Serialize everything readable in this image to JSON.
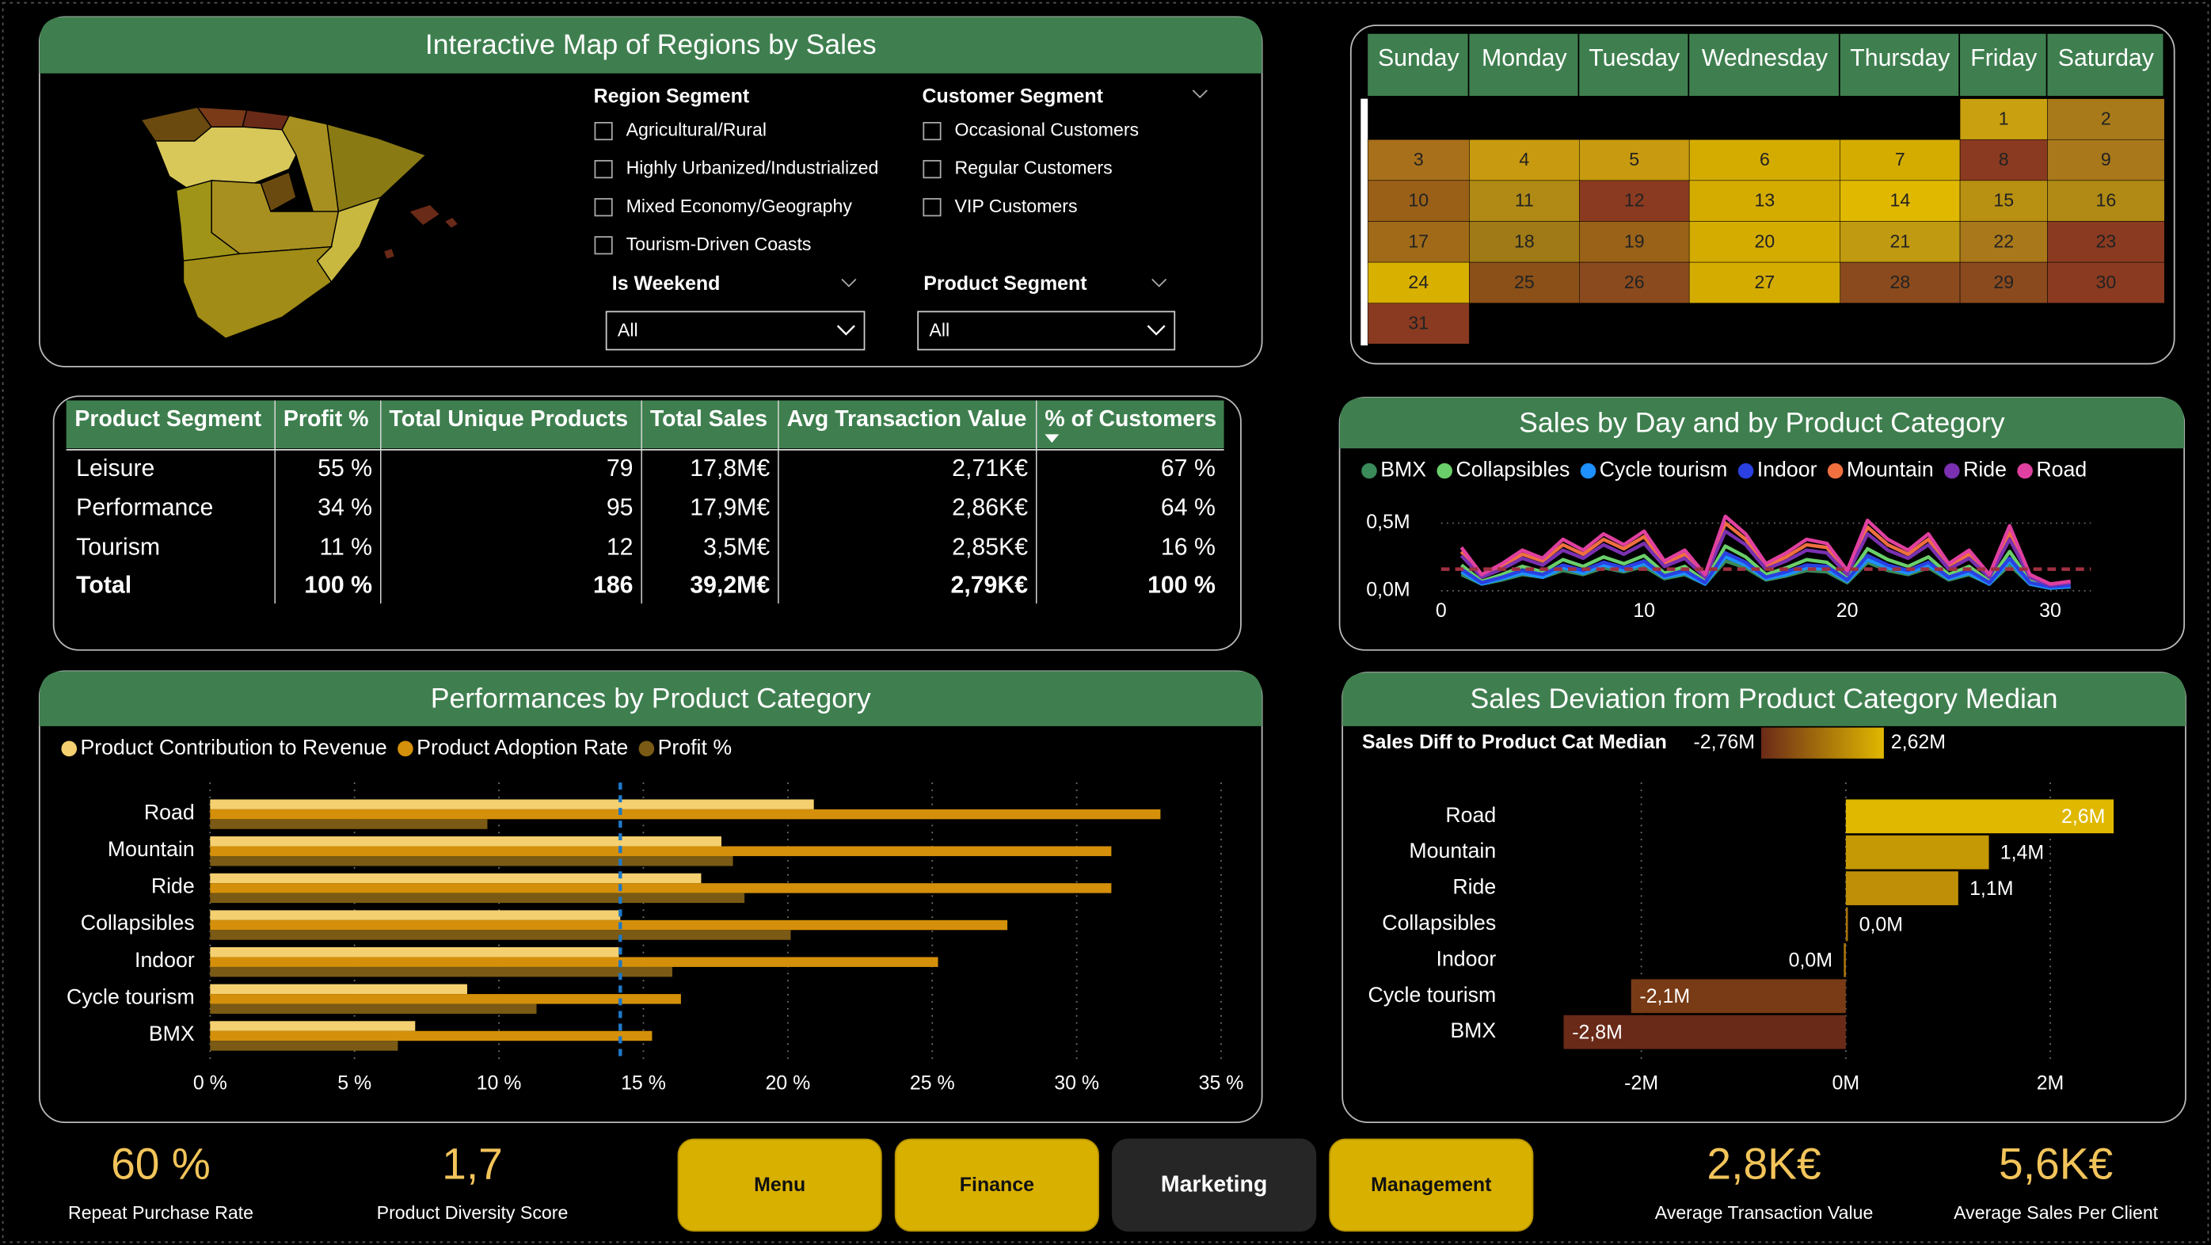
{
  "map_panel": {
    "title": "Interactive Map of Regions by Sales",
    "region_segment": {
      "label": "Region Segment",
      "options": [
        "Agricultural/Rural",
        "Highly Urbanized/Industrialized",
        "Mixed Economy/Geography",
        "Tourism-Driven Coasts"
      ]
    },
    "customer_segment": {
      "label": "Customer Segment",
      "options": [
        "Occasional Customers",
        "Regular Customers",
        "VIP Customers"
      ]
    },
    "is_weekend": {
      "label": "Is Weekend",
      "selected": "All"
    },
    "product_segment": {
      "label": "Product Segment",
      "selected": "All"
    }
  },
  "calendar": {
    "weekdays": [
      "Sunday",
      "Monday",
      "Tuesday",
      "Wednesday",
      "Thursday",
      "Friday",
      "Saturday"
    ],
    "days": [
      1,
      2,
      3,
      4,
      5,
      6,
      7,
      8,
      9,
      10,
      11,
      12,
      13,
      14,
      15,
      16,
      17,
      18,
      19,
      20,
      21,
      22,
      23,
      24,
      25,
      26,
      27,
      28,
      29,
      30,
      31
    ],
    "colors": [
      "#c9a010",
      "#a87a1a",
      "#a8701a",
      "#c89a10",
      "#c89a10",
      "#d4ac00",
      "#d4ac00",
      "#8a3a20",
      "#a8781a",
      "#9a6018",
      "#b08a14",
      "#8a3a20",
      "#d4ac00",
      "#e0b800",
      "#b89012",
      "#b08a14",
      "#a06a18",
      "#a07a16",
      "#9a6218",
      "#d4ac00",
      "#c09a10",
      "#a8781a",
      "#8a3a20",
      "#d8b000",
      "#8a5018",
      "#8a4a1e",
      "#d4ac00",
      "#8a4a1e",
      "#8a4a1e",
      "#8a3a20",
      "#8a3a20"
    ]
  },
  "table": {
    "columns": [
      "Product Segment",
      "Profit %",
      "Total Unique Products",
      "Total Sales",
      "Avg Transaction Value",
      "% of Customers"
    ],
    "rows": [
      [
        "Leisure",
        "55 %",
        "79",
        "17,8M€",
        "2,71K€",
        "67 %"
      ],
      [
        "Performance",
        "34 %",
        "95",
        "17,9M€",
        "2,86K€",
        "64 %"
      ],
      [
        "Tourism",
        "11 %",
        "12",
        "3,5M€",
        "2,85K€",
        "16 %"
      ],
      [
        "Total",
        "100 %",
        "186",
        "39,2M€",
        "2,79K€",
        "100 %"
      ]
    ]
  },
  "chart_data": [
    {
      "type": "line",
      "title": "Sales by Day and by Product Category",
      "x": [
        1,
        2,
        3,
        4,
        5,
        6,
        7,
        8,
        9,
        10,
        11,
        12,
        13,
        14,
        15,
        16,
        17,
        18,
        19,
        20,
        21,
        22,
        23,
        24,
        25,
        26,
        27,
        28,
        29,
        30,
        31
      ],
      "xlim": [
        0,
        32
      ],
      "xticks": [
        0,
        10,
        20,
        30
      ],
      "ylim": [
        0,
        0.6
      ],
      "yticks": [
        {
          "value": 0,
          "label": "0,0M"
        },
        {
          "value": 0.5,
          "label": "0,5M"
        }
      ],
      "grid": true,
      "reference_line": {
        "value": 0.16,
        "color": "#a03040"
      },
      "series": [
        {
          "name": "BMX",
          "color": "#3a8a5a",
          "values": [
            0.12,
            0.05,
            0.08,
            0.12,
            0.1,
            0.15,
            0.12,
            0.17,
            0.14,
            0.18,
            0.09,
            0.12,
            0.05,
            0.22,
            0.17,
            0.08,
            0.11,
            0.15,
            0.14,
            0.06,
            0.21,
            0.15,
            0.12,
            0.17,
            0.08,
            0.12,
            0.05,
            0.19,
            0.05,
            0.02,
            0.03
          ]
        },
        {
          "name": "Collapsibles",
          "color": "#6acf6a",
          "values": [
            0.19,
            0.07,
            0.12,
            0.18,
            0.14,
            0.23,
            0.18,
            0.25,
            0.2,
            0.26,
            0.13,
            0.18,
            0.07,
            0.33,
            0.25,
            0.12,
            0.17,
            0.23,
            0.21,
            0.09,
            0.31,
            0.23,
            0.18,
            0.25,
            0.12,
            0.18,
            0.07,
            0.29,
            0.07,
            0.03,
            0.04
          ]
        },
        {
          "name": "Cycle tourism",
          "color": "#1e90ff",
          "values": [
            0.14,
            0.05,
            0.09,
            0.13,
            0.1,
            0.17,
            0.13,
            0.19,
            0.15,
            0.2,
            0.1,
            0.13,
            0.05,
            0.25,
            0.19,
            0.09,
            0.12,
            0.17,
            0.16,
            0.07,
            0.23,
            0.17,
            0.13,
            0.19,
            0.09,
            0.13,
            0.05,
            0.22,
            0.05,
            0.02,
            0.03
          ]
        },
        {
          "name": "Indoor",
          "color": "#2a40e0",
          "values": [
            0.16,
            0.06,
            0.1,
            0.15,
            0.12,
            0.19,
            0.15,
            0.21,
            0.17,
            0.22,
            0.11,
            0.15,
            0.06,
            0.28,
            0.21,
            0.1,
            0.14,
            0.19,
            0.18,
            0.08,
            0.26,
            0.19,
            0.15,
            0.21,
            0.1,
            0.15,
            0.06,
            0.24,
            0.06,
            0.03,
            0.04
          ]
        },
        {
          "name": "Mountain",
          "color": "#f07040",
          "values": [
            0.29,
            0.11,
            0.18,
            0.27,
            0.22,
            0.34,
            0.27,
            0.38,
            0.31,
            0.4,
            0.2,
            0.27,
            0.11,
            0.5,
            0.38,
            0.18,
            0.25,
            0.34,
            0.32,
            0.14,
            0.47,
            0.34,
            0.27,
            0.38,
            0.18,
            0.27,
            0.11,
            0.43,
            0.11,
            0.05,
            0.06
          ]
        },
        {
          "name": "Ride",
          "color": "#7a30b0",
          "values": [
            0.26,
            0.1,
            0.16,
            0.24,
            0.19,
            0.3,
            0.24,
            0.34,
            0.27,
            0.35,
            0.18,
            0.24,
            0.1,
            0.44,
            0.34,
            0.16,
            0.22,
            0.3,
            0.28,
            0.12,
            0.42,
            0.3,
            0.24,
            0.34,
            0.16,
            0.24,
            0.1,
            0.38,
            0.1,
            0.04,
            0.06
          ]
        },
        {
          "name": "Road",
          "color": "#e040a0",
          "values": [
            0.32,
            0.12,
            0.2,
            0.3,
            0.24,
            0.38,
            0.3,
            0.42,
            0.34,
            0.44,
            0.22,
            0.3,
            0.12,
            0.55,
            0.42,
            0.2,
            0.28,
            0.38,
            0.35,
            0.15,
            0.52,
            0.38,
            0.3,
            0.42,
            0.2,
            0.3,
            0.12,
            0.48,
            0.12,
            0.05,
            0.07
          ]
        }
      ]
    },
    {
      "type": "hbar",
      "title": "Performances by Product Category",
      "categories": [
        "Road",
        "Mountain",
        "Ride",
        "Collapsibles",
        "Indoor",
        "Cycle tourism",
        "BMX"
      ],
      "xlim": [
        0,
        35
      ],
      "xticks": [
        {
          "value": 0,
          "label": "0 %"
        },
        {
          "value": 5,
          "label": "5 %"
        },
        {
          "value": 10,
          "label": "10 %"
        },
        {
          "value": 15,
          "label": "15 %"
        },
        {
          "value": 20,
          "label": "20 %"
        },
        {
          "value": 25,
          "label": "25 %"
        },
        {
          "value": 30,
          "label": "30 %"
        },
        {
          "value": 35,
          "label": "35 %"
        }
      ],
      "grid": true,
      "reference_line": {
        "value": 14.2,
        "color": "#1e78c8"
      },
      "series": [
        {
          "name": "Product Contribution to Revenue",
          "color": "#f5d070",
          "values": [
            20.9,
            17.7,
            17.0,
            14.2,
            14.15,
            8.9,
            7.1
          ]
        },
        {
          "name": "Product Adoption Rate",
          "color": "#d4900a",
          "values": [
            32.9,
            31.2,
            31.2,
            27.6,
            25.2,
            16.3,
            15.3
          ]
        },
        {
          "name": "Profit %",
          "color": "#7a5a14",
          "values": [
            9.6,
            18.1,
            18.5,
            20.1,
            16.0,
            11.3,
            6.5
          ]
        }
      ]
    },
    {
      "type": "diverging",
      "title": "Sales Deviation from Product Category Median",
      "color_scale": {
        "title": "Sales Diff to Product Cat Median",
        "min": {
          "value": -2.76,
          "label": "-2,76M",
          "color": "#6a2a18"
        },
        "max": {
          "value": 2.62,
          "label": "2,62M",
          "color": "#e0b800"
        }
      },
      "categories": [
        "Road",
        "Mountain",
        "Ride",
        "Collapsibles",
        "Indoor",
        "Cycle tourism",
        "BMX"
      ],
      "values": [
        2.62,
        1.4,
        1.1,
        0.02,
        -0.02,
        -2.1,
        -2.76
      ],
      "value_labels": [
        "2,6M",
        "1,4M",
        "1,1M",
        "0,0M",
        "0,0M",
        "-2,1M",
        "-2,8M"
      ],
      "xlim": [
        -3,
        3
      ],
      "xticks": [
        {
          "value": -2,
          "label": "-2M"
        },
        {
          "value": 0,
          "label": "0M"
        },
        {
          "value": 2,
          "label": "2M"
        }
      ],
      "grid": true
    }
  ],
  "kpis": [
    {
      "value": "60 %",
      "label": "Repeat Purchase Rate"
    },
    {
      "value": "1,7",
      "label": "Product Diversity Score"
    },
    {
      "value": "2,8K€",
      "label": "Average Transaction Value"
    },
    {
      "value": "5,6K€",
      "label": "Average Sales Per Client"
    }
  ],
  "buttons": [
    "Menu",
    "Finance",
    "Marketing",
    "Management"
  ]
}
